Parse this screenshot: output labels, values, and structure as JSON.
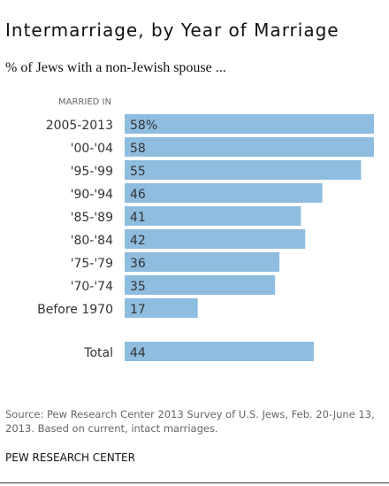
{
  "title": "Intermarriage, by Year of Marriage",
  "subtitle": "% of Jews with a non-Jewish spouse ...",
  "source": "Source: Pew Research Center 2013 Survey of U.S. Jews, Feb. 20-June 13, 2013. Based on current, intact marriages.",
  "org": "PEW RESEARCH CENTER",
  "colors": {
    "bar": "#8fbde0",
    "label": "#333333"
  },
  "chart_data": {
    "type": "bar",
    "orientation": "horizontal",
    "category_header": "MARRIED IN",
    "categories": [
      "2005-2013",
      "'00-'04",
      "'95-'99",
      "'90-'94",
      "'85-'89",
      "'80-'84",
      "'75-'79",
      "'70-'74",
      "Before 1970",
      "Total"
    ],
    "values": [
      58,
      58,
      55,
      46,
      41,
      42,
      36,
      35,
      17,
      44
    ],
    "value_labels": [
      "58%",
      "58",
      "55",
      "46",
      "41",
      "42",
      "36",
      "35",
      "17",
      "44"
    ],
    "xlim": [
      0,
      58
    ],
    "grid": false,
    "legend": "none"
  }
}
